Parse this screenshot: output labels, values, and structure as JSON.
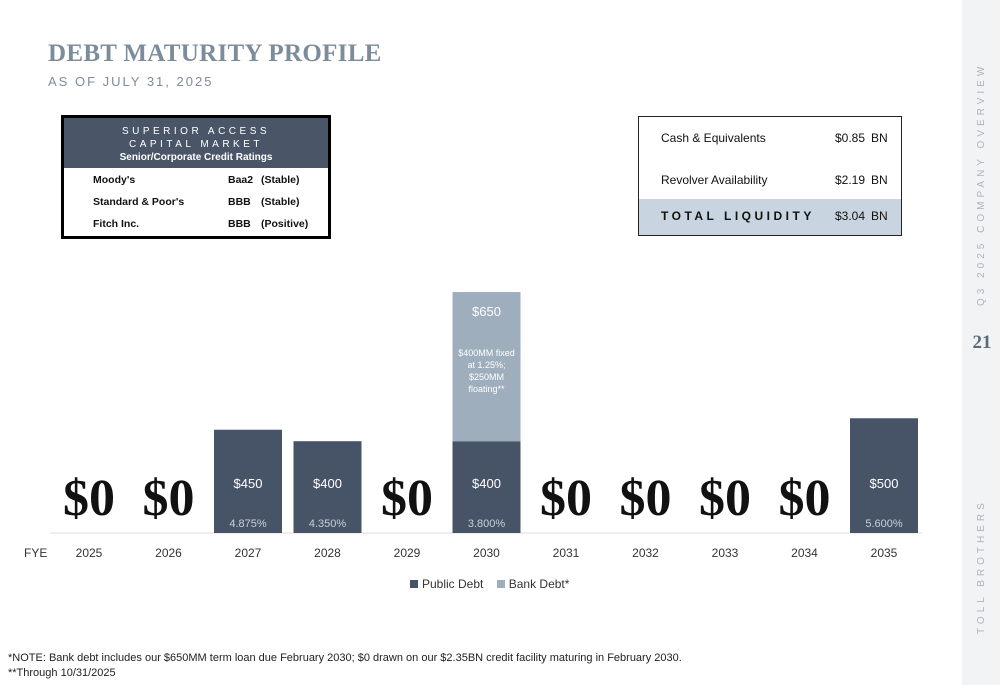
{
  "page": {
    "title": "DEBT MATURITY PROFILE",
    "subtitle": "AS OF JULY 31, 2025",
    "side_label_top": "Q3 2025 COMPANY OVERVIEW",
    "side_label_bottom": "TOLL BROTHERS",
    "page_number": "21"
  },
  "ratings": {
    "header_line1": "SUPERIOR ACCESS",
    "header_line2": "CAPITAL MARKET",
    "header_line3": "Senior/Corporate Credit Ratings",
    "rows": [
      {
        "agency": "Moody's",
        "rating": "Baa2",
        "outlook": "(Stable)"
      },
      {
        "agency": "Standard & Poor's",
        "rating": "BBB",
        "outlook": "(Stable)"
      },
      {
        "agency": "Fitch Inc.",
        "rating": "BBB",
        "outlook": "(Positive)"
      }
    ]
  },
  "liquidity": {
    "rows": [
      {
        "label": "Cash & Equivalents",
        "value": "$0.85",
        "unit": "BN"
      },
      {
        "label": "Revolver Availability",
        "value": "$2.19",
        "unit": "BN"
      }
    ],
    "total": {
      "label": "TOTAL LIQUIDITY",
      "value": "$3.04",
      "unit": "BN"
    }
  },
  "chart_data": {
    "type": "bar",
    "stacked": true,
    "x_prefix": "FYE",
    "categories": [
      "2025",
      "2026",
      "2027",
      "2028",
      "2029",
      "2030",
      "2031",
      "2032",
      "2033",
      "2034",
      "2035"
    ],
    "series": [
      {
        "name": "Public Debt",
        "color": "#475467",
        "values": [
          0,
          0,
          450,
          400,
          0,
          400,
          0,
          0,
          0,
          0,
          500
        ]
      },
      {
        "name": "Bank Debt*",
        "color": "#9faebd",
        "values": [
          0,
          0,
          0,
          0,
          0,
          650,
          0,
          0,
          0,
          0,
          0
        ]
      }
    ],
    "bar_labels": [
      "$0",
      "$0",
      "$450",
      "$400",
      "$0",
      "$400",
      "$0",
      "$0",
      "$0",
      "$0",
      "$500"
    ],
    "rate_labels": [
      "",
      "",
      "4.875%",
      "4.350%",
      "",
      "3.800%",
      "",
      "",
      "",
      "",
      "5.600%"
    ],
    "bank_label": "$650",
    "bank_annotation": [
      "$400MM fixed",
      "at 1.25%;",
      "$250MM",
      "floating**"
    ]
  },
  "notes": {
    "line1": "*NOTE: Bank debt includes our $650MM term loan due February 2030;  $0 drawn on our $2.35BN credit facility maturing in February 2030.",
    "line2": "**Through 10/31/2025"
  }
}
